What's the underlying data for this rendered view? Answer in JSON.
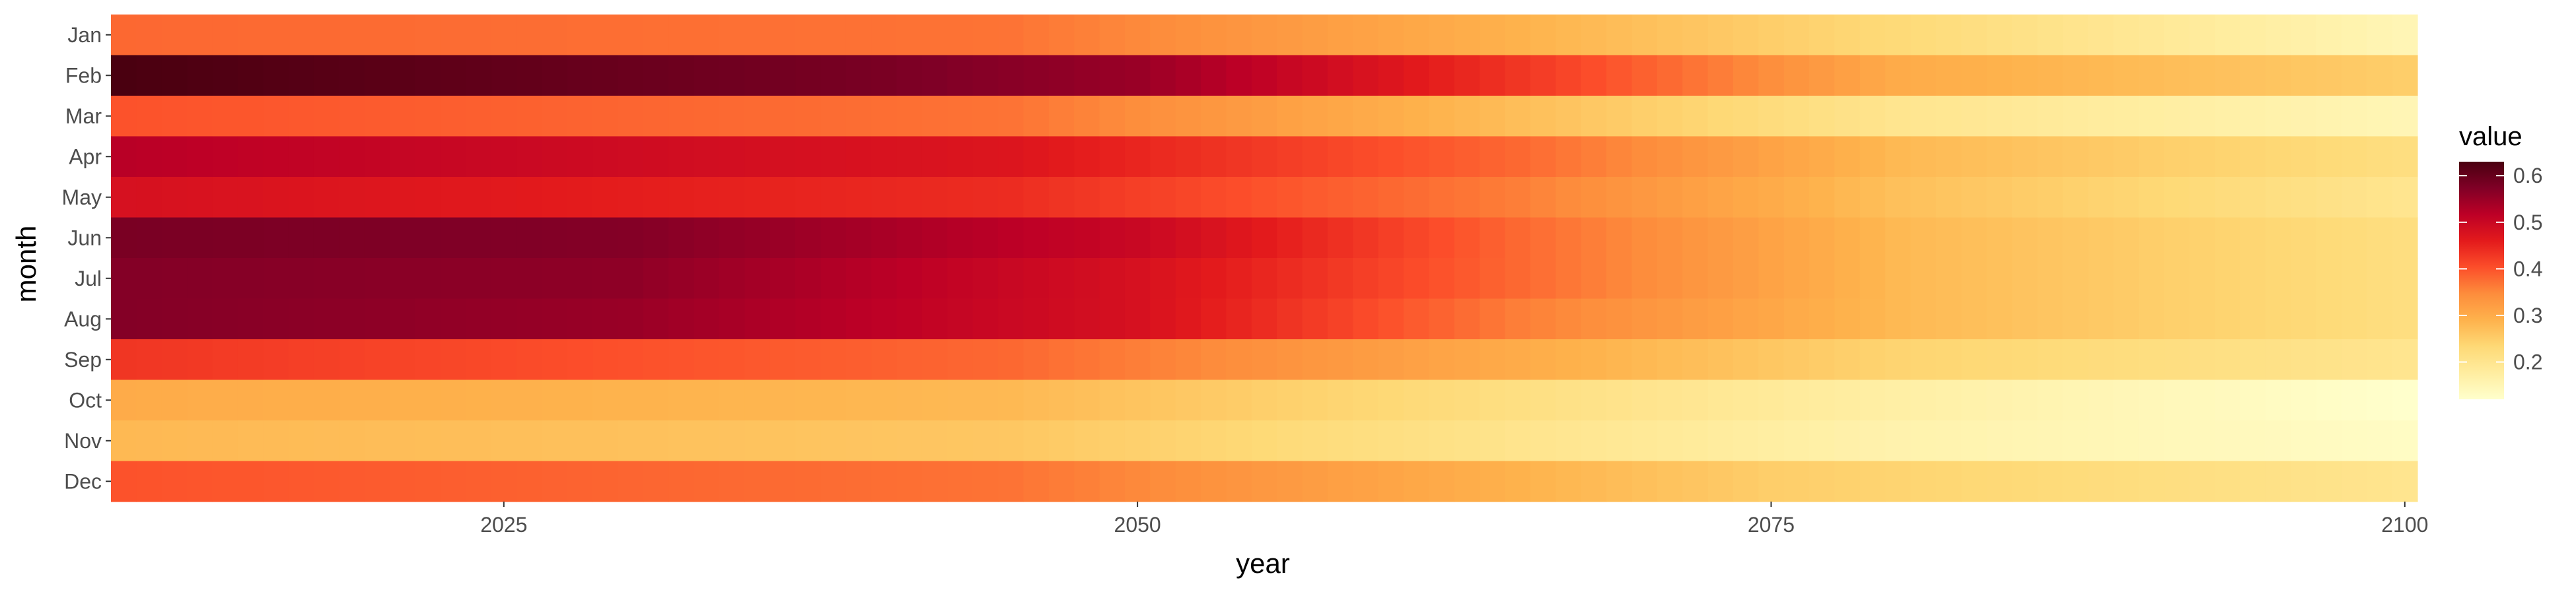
{
  "chart_data": {
    "type": "heatmap",
    "title": "",
    "xlabel": "year",
    "ylabel": "month",
    "x_range": [
      2010,
      2100
    ],
    "x_ticks": [
      2025,
      2050,
      2075,
      2100
    ],
    "months": [
      "Jan",
      "Feb",
      "Mar",
      "Apr",
      "May",
      "Jun",
      "Jul",
      "Aug",
      "Sep",
      "Oct",
      "Nov",
      "Dec"
    ],
    "legend": {
      "title": "value",
      "placement": "right",
      "range": [
        0.12,
        0.63
      ],
      "ticks": [
        0.2,
        0.3,
        0.4,
        0.5,
        0.6
      ]
    },
    "colormap": [
      "#ffffcc",
      "#ffeda0",
      "#fed976",
      "#feb24c",
      "#fd8d3c",
      "#fc4e2a",
      "#e31a1c",
      "#bd0026",
      "#800026",
      "#4a0010"
    ],
    "series": [
      {
        "month": "Jan",
        "anchor_years": [
          2010,
          2045,
          2075,
          2100
        ],
        "anchor_values": [
          0.38,
          0.37,
          0.25,
          0.15
        ]
      },
      {
        "month": "Feb",
        "anchor_years": [
          2010,
          2040,
          2050,
          2065,
          2080,
          2100
        ],
        "anchor_values": [
          0.63,
          0.58,
          0.55,
          0.43,
          0.3,
          0.25
        ]
      },
      {
        "month": "Mar",
        "anchor_years": [
          2010,
          2045,
          2080,
          2100
        ],
        "anchor_values": [
          0.4,
          0.37,
          0.2,
          0.15
        ]
      },
      {
        "month": "Apr",
        "anchor_years": [
          2010,
          2045,
          2065,
          2080,
          2100
        ],
        "anchor_values": [
          0.52,
          0.47,
          0.38,
          0.28,
          0.22
        ]
      },
      {
        "month": "May",
        "anchor_years": [
          2010,
          2045,
          2065,
          2080,
          2100
        ],
        "anchor_values": [
          0.48,
          0.44,
          0.36,
          0.27,
          0.2
        ]
      },
      {
        "month": "Jun",
        "anchor_years": [
          2010,
          2030,
          2050,
          2065,
          2080,
          2100
        ],
        "anchor_values": [
          0.58,
          0.57,
          0.5,
          0.38,
          0.28,
          0.22
        ]
      },
      {
        "month": "Jul",
        "anchor_years": [
          2010,
          2030,
          2050,
          2065,
          2080,
          2100
        ],
        "anchor_values": [
          0.57,
          0.56,
          0.48,
          0.38,
          0.28,
          0.22
        ]
      },
      {
        "month": "Aug",
        "anchor_years": [
          2010,
          2030,
          2050,
          2065,
          2080,
          2100
        ],
        "anchor_values": [
          0.57,
          0.55,
          0.48,
          0.36,
          0.28,
          0.22
        ]
      },
      {
        "month": "Sep",
        "anchor_years": [
          2010,
          2045,
          2065,
          2080,
          2100
        ],
        "anchor_values": [
          0.43,
          0.38,
          0.3,
          0.24,
          0.2
        ]
      },
      {
        "month": "Oct",
        "anchor_years": [
          2010,
          2045,
          2080,
          2100
        ],
        "anchor_values": [
          0.3,
          0.28,
          0.17,
          0.12
        ]
      },
      {
        "month": "Nov",
        "anchor_years": [
          2010,
          2045,
          2080,
          2100
        ],
        "anchor_values": [
          0.28,
          0.26,
          0.16,
          0.13
        ]
      },
      {
        "month": "Dec",
        "anchor_years": [
          2010,
          2045,
          2075,
          2100
        ],
        "anchor_values": [
          0.4,
          0.37,
          0.25,
          0.2
        ]
      }
    ]
  }
}
